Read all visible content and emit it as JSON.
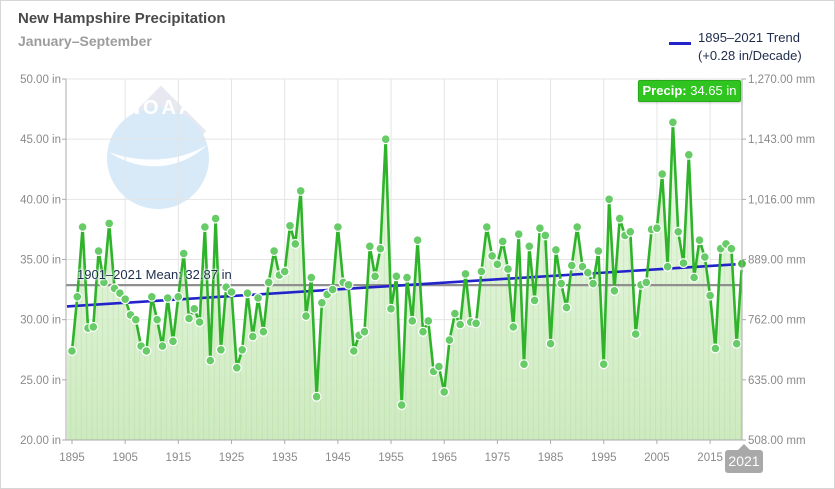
{
  "header": {
    "title": "New Hampshire Precipitation",
    "subtitle": "January–September"
  },
  "legend": {
    "line1": "1895–2021 Trend",
    "line2": "(+0.28 in/Decade)",
    "swatch_color": "#2323cc"
  },
  "selected_point_tooltip": {
    "label": "Precip:",
    "value": "34.65 in"
  },
  "x_axis_tooltip": "2021",
  "mean_line_label": "1901–2021 Mean: 32.87 in",
  "watermark": "NOAA",
  "colors": {
    "line_green": "#2eb32a",
    "dot_green": "#67cb67",
    "dot_stroke": "#ffffff",
    "area_green_top": "#e4f6dc",
    "area_green_bottom": "#cdeabf",
    "trend_blue": "#2323cc",
    "mean_gray": "#8f8f8f",
    "grid_gray": "#e4e4e4",
    "axis_gray": "#ababab",
    "label_gray": "#8a8a8a",
    "tooltip_green": "#2fc41f",
    "x_tooltip_gray": "#a9a9a9"
  },
  "chart_data": {
    "type": "line",
    "title": "New Hampshire Precipitation, January–September",
    "x_first_year": 1895,
    "x_last_year": 2021,
    "values_unit": "in",
    "values": [
      27.4,
      31.9,
      37.7,
      29.3,
      29.4,
      35.7,
      33.1,
      38.0,
      32.6,
      32.2,
      31.7,
      30.4,
      30.0,
      27.8,
      27.4,
      31.9,
      30.0,
      27.8,
      31.8,
      28.2,
      31.9,
      35.5,
      30.1,
      30.9,
      29.8,
      37.7,
      26.6,
      38.4,
      27.5,
      32.7,
      32.3,
      26.0,
      27.5,
      32.2,
      28.6,
      31.8,
      29.0,
      33.1,
      35.7,
      33.7,
      34.0,
      37.8,
      36.3,
      40.7,
      30.3,
      33.5,
      23.6,
      31.4,
      32.1,
      32.5,
      37.7,
      33.1,
      32.9,
      27.4,
      28.7,
      29.0,
      36.1,
      33.6,
      35.9,
      45.0,
      30.9,
      33.6,
      22.9,
      33.5,
      29.9,
      36.6,
      29.0,
      29.9,
      25.7,
      26.1,
      24.0,
      28.3,
      30.5,
      29.6,
      33.8,
      29.8,
      29.7,
      34.0,
      37.7,
      35.3,
      34.6,
      36.5,
      34.2,
      29.4,
      37.1,
      26.3,
      36.1,
      31.6,
      37.6,
      37.0,
      28.0,
      35.8,
      33.0,
      31.0,
      34.5,
      37.7,
      34.4,
      33.9,
      33.0,
      35.7,
      26.3,
      40.0,
      32.4,
      38.4,
      37.0,
      37.3,
      28.8,
      32.9,
      33.1,
      37.5,
      37.6,
      42.1,
      34.4,
      46.4,
      37.3,
      34.7,
      43.7,
      33.5,
      36.6,
      35.2,
      32.0,
      27.6,
      35.9,
      36.3,
      35.9,
      28.0,
      34.65
    ],
    "selected_point": {
      "year": 2021,
      "value": 34.65
    },
    "trend": {
      "period": "1895–2021",
      "rate_in_per_decade": 0.28,
      "value_at_1895": 31.1,
      "value_at_2021": 34.63
    },
    "mean": {
      "period": "1901–2021",
      "value": 32.87
    },
    "ylim": [
      20,
      50
    ],
    "y2lim": [
      508,
      1270
    ],
    "grid": true,
    "legend_position": "top-right",
    "yticks": {
      "values": [
        50,
        45,
        40,
        35,
        30,
        25,
        20
      ],
      "labels_in": [
        "50.00 in",
        "45.00 in",
        "40.00 in",
        "35.00 in",
        "30.00 in",
        "25.00 in",
        "20.00 in"
      ],
      "labels_mm": [
        "1,270.00 mm",
        "1,143.00 mm",
        "1,016.00 mm",
        "889.00 mm",
        "762.00 mm",
        "635.00 mm",
        "508.00 mm"
      ]
    },
    "xticks": [
      1895,
      1905,
      1915,
      1925,
      1935,
      1945,
      1955,
      1965,
      1975,
      1985,
      1995,
      2005,
      2015
    ]
  }
}
